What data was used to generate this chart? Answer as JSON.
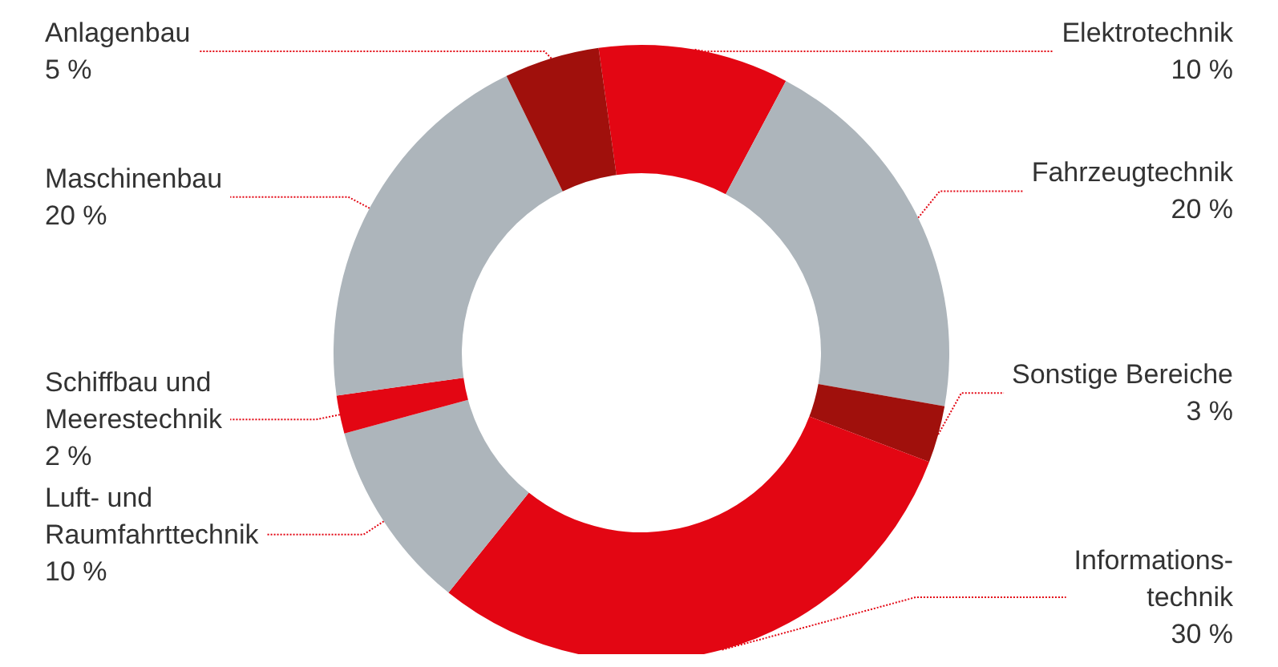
{
  "chart_data": {
    "type": "donut",
    "categories": [
      "Elektrotechnik",
      "Fahrzeugtechnik",
      "Sonstige Bereiche",
      "Informations-\ntechnik",
      "Luft- und\nRaumfahrttechnik",
      "Schiffbau und\nMeerestechnik",
      "Maschinenbau",
      "Anlagenbau"
    ],
    "values": [
      10,
      20,
      3,
      30,
      10,
      2,
      20,
      5
    ],
    "value_labels": [
      "10 %",
      "20 %",
      "3 %",
      "30 %",
      "10 %",
      "2 %",
      "20 %",
      "5 %"
    ],
    "colors": [
      "#e30613",
      "#adb5bb",
      "#a0100c",
      "#e30613",
      "#adb5bb",
      "#e30613",
      "#adb5bb",
      "#a0100c"
    ],
    "legend": false
  }
}
